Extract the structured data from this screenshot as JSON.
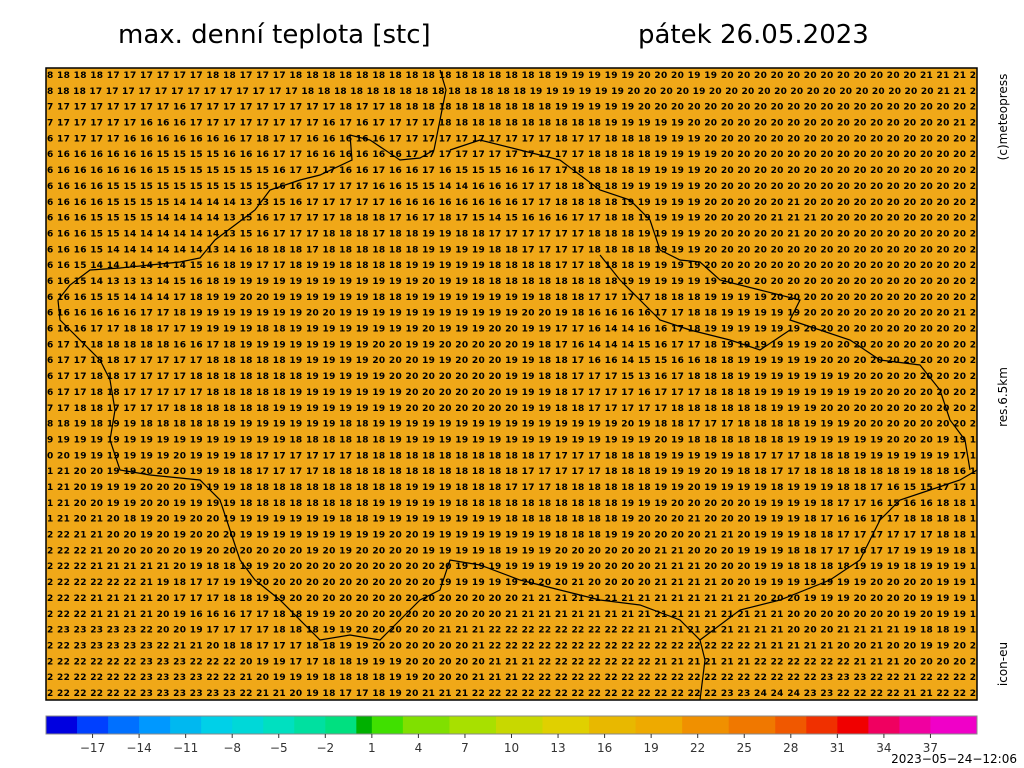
{
  "title": "max. denní teplota [stc]",
  "date": "pátek 26.05.2023",
  "credit": "(c)meteopress",
  "resolution": "res.6.5km",
  "model": "icon-eu",
  "timestamp": "2023−05−24−12:06",
  "map": {
    "background": "#f0a818",
    "rows": [
      "8 18 18 18 17 17 17 17 17 17 18 18 17 17 17 18 18 18 18 18 18 18 18 18 18 18 18 18 18 18 18 19 19 19 19 19 20 20 20 19 19 20 20 20 20 20 20 20 20 20 20 20 20 21 21 21 2",
      "8 18 18 17 17 17 17 17 17 17 17 17 17 17 17 17 18 18 18 18 18 18 18 18 18 18 18 18 18 18 19 19 19 19 19 19 20 20 20 20 19 20 20 20 20 20 20 20 20 20 20 20 20 20 20 21 21 2",
      "7 17 17 17 17 17 17 17 16 17 17 17 17 17 17 17 17 17 18 17 17 18 18 18 18 18 18 18 18 18 18 19 19 19 19 19 20 20 20 20 20 20 20 20 20 20 20 20 20 20 20 20 20 20 20 20 2",
      "7 17 17 17 17 17 16 16 16 17 17 17 17 17 17 17 17 16 17 16 17 17 17 17 18 18 18 18 18 18 18 18 18 18 19 19 19 19 19 20 20 20 20 20 20 20 20 20 20 20 20 20 20 20 20 21 2",
      "6 17 17 17 17 16 16 16 16 16 16 16 17 18 17 17 16 16 16 16 16 17 17 17 17 17 17 17 17 17 17 18 17 17 18 18 18 19 19 19 20 20 20 20 20 20 20 20 20 20 20 20 20 20 20 20 2",
      "6 16 16 16 16 16 16 15 15 15 15 16 16 16 17 17 16 16 16 16 16 16 17 17 17 17 17 17 17 17 17 17 17 18 18 18 18 19 19 19 19 20 20 20 20 20 20 20 20 20 20 20 20 20 20 20 2",
      "6 16 16 16 16 16 16 15 15 15 15 15 15 15 16 17 17 17 16 16 17 16 16 17 16 15 15 15 16 16 17 17 18 18 18 18 19 19 19 19 20 20 20 20 20 20 20 20 20 20 20 20 20 20 20 20 2",
      "6 16 16 16 15 15 15 15 15 15 15 15 15 15 16 16 17 17 17 17 16 16 15 15 14 14 16 16 16 17 17 18 18 18 18 19 19 19 19 19 20 20 20 20 20 20 20 20 20 20 20 20 20 20 20 20 2",
      "6 16 16 16 15 15 15 15 14 14 14 14 13 13 15 16 17 17 17 17 17 16 16 16 16 16 16 16 16 17 17 18 18 18 18 19 19 19 19 19 20 20 20 20 20 21 20 20 20 20 20 20 20 20 20 20 2",
      "6 16 16 15 15 15 15 14 14 14 14 13 15 16 17 17 17 17 18 18 18 17 16 17 18 17 15 14 15 16 16 16 17 17 18 18 19 19 19 19 20 20 20 20 21 21 21 20 20 20 20 20 20 20 20 20 2",
      "6 16 16 15 15 14 14 14 14 14 14 13 15 16 17 17 17 18 18 18 17 18 18 19 19 18 18 17 17 17 17 17 17 18 18 18 19 19 19 19 20 20 20 20 20 21 20 20 20 20 20 20 20 20 20 20 2",
      "6 16 16 15 14 14 14 14 14 14 13 14 16 18 18 18 17 18 18 18 18 18 18 19 19 19 19 18 18 17 17 17 17 18 18 18 18 19 19 19 20 20 20 20 20 20 20 20 20 20 20 20 20 20 20 20 2",
      "6 16 15 14 14 14 14 14 14 15 16 18 19 17 17 18 19 19 18 18 18 18 19 19 19 19 19 18 18 18 18 17 17 18 18 18 19 19 19 19 20 20 20 20 20 20 20 20 20 20 20 20 20 20 20 20 2",
      "6 16 15 14 13 13 13 14 15 16 18 19 19 19 19 19 19 19 19 19 19 19 19 20 19 19 18 18 18 18 18 18 18 18 18 19 19 19 19 19 19 20 20 20 20 20 20 20 20 20 20 20 20 20 20 20 2",
      "6 16 16 15 15 14 14 14 17 18 19 19 20 20 19 19 19 19 19 19 18 18 19 19 19 19 19 19 19 19 18 18 18 17 17 17 17 18 18 18 19 19 19 19 20 20 20 20 20 20 20 20 20 20 20 20 2",
      "6 16 16 16 16 16 17 17 18 19 19 19 19 19 19 19 20 20 19 19 19 19 19 19 19 19 19 19 19 20 20 19 18 16 16 16 16 17 17 18 18 19 19 19 19 19 20 20 20 20 20 20 20 20 20 21 2",
      "6 16 16 17 17 18 18 17 17 19 19 19 19 18 18 19 19 19 19 19 19 19 19 20 19 19 19 20 20 19 19 17 17 16 14 14 16 16 17 18 19 19 19 19 19 19 20 20 20 20 20 20 20 20 20 20 2",
      "6 17 17 18 18 18 18 18 16 16 17 18 19 19 19 19 19 19 19 19 20 20 19 19 20 20 20 20 20 19 18 17 16 14 14 14 15 16 17 17 18 19 19 19 19 19 19 20 20 20 20 20 20 20 20 20 2",
      "6 17 17 18 18 17 17 17 17 17 18 18 18 18 18 19 19 19 19 19 20 20 20 19 19 20 20 20 19 19 18 18 17 16 16 14 15 15 16 16 18 18 19 19 19 19 19 20 20 20 20 20 20 20 20 20 2",
      "6 17 17 18 18 17 17 17 17 18 18 18 18 18 18 18 19 19 19 19 19 20 20 20 20 20 20 20 19 19 18 18 17 17 17 15 13 16 17 18 18 18 19 19 19 19 19 19 19 20 20 20 20 20 20 20 2",
      "6 17 17 18 18 17 17 17 17 17 18 18 18 18 18 19 19 19 19 19 19 19 20 20 20 20 20 20 19 19 19 18 17 17 17 17 16 17 17 17 18 18 18 19 19 19 19 19 19 19 20 20 20 20 20 20 2",
      "7 17 18 18 17 17 17 17 18 18 18 18 18 18 19 19 19 19 19 19 19 19 20 20 20 20 20 20 20 19 19 18 18 17 17 17 17 17 18 18 18 18 18 18 19 19 19 20 20 20 20 20 20 20 20 20 2",
      "8 18 19 18 19 19 18 18 18 18 18 19 19 19 19 19 19 19 18 18 19 19 19 19 19 19 19 19 19 19 19 19 19 19 19 20 19 18 18 17 17 17 18 18 18 18 19 19 19 20 20 20 20 20 20 20 2",
      "9 19 19 19 19 19 19 19 19 19 19 19 19 19 19 18 18 18 18 18 18 19 19 19 19 19 19 19 19 19 19 19 19 19 19 19 19 20 19 18 18 18 18 18 18 19 19 19 19 19 19 20 20 20 19 19 1",
      "0 20 19 19 19 19 19 19 20 19 19 19 18 17 17 17 17 17 17 18 18 18 18 18 18 18 18 18 18 18 17 17 17 17 18 18 18 19 19 19 19 19 18 17 17 17 18 18 18 19 19 19 19 19 19 17 1",
      "1 21 20 20 19 19 20 20 20 19 19 18 18 17 17 17 17 18 18 18 18 18 18 18 18 18 18 18 18 17 17 17 17 17 18 18 18 19 19 19 20 19 18 18 17 17 18 18 18 18 18 18 19 18 18 16 1",
      "1 21 20 19 19 19 20 20 20 19 19 19 18 18 18 18 18 18 18 18 18 18 19 19 19 18 18 18 17 17 17 18 18 18 18 18 18 19 19 20 19 19 19 19 18 19 19 19 18 18 17 16 15 15 17 17 1",
      "1 21 20 20 19 19 20 20 19 19 19 19 18 18 18 18 18 18 18 18 19 19 19 19 19 18 18 18 18 18 18 18 18 18 18 19 19 19 20 20 20 20 20 19 19 19 19 18 17 17 16 15 16 16 18 18 1",
      "1 21 20 21 20 18 19 20 19 20 20 19 19 19 19 19 19 19 18 18 19 19 19 19 19 19 19 19 18 18 18 18 18 18 18 19 20 20 20 21 20 20 20 19 19 19 18 17 16 16 17 17 18 18 18 18 1",
      "2 22 21 21 20 20 19 20 19 20 20 20 19 19 19 19 19 19 19 19 19 20 20 19 19 19 19 19 19 19 19 18 18 18 19 19 20 20 20 20 21 21 20 19 19 19 18 18 17 17 17 17 17 17 18 18 1",
      "2 22 22 21 20 20 20 20 20 19 20 20 20 20 20 20 19 20 19 20 20 20 20 19 19 19 19 18 19 19 19 20 20 20 20 20 20 21 21 20 20 20 19 19 19 18 18 17 17 16 17 17 19 19 19 18 1",
      "2 22 22 21 21 21 21 21 20 19 18 18 19 19 20 20 20 20 20 20 20 20 20 20 20 19 19 19 19 19 19 19 19 20 20 20 20 21 21 21 20 20 20 19 19 18 18 18 18 19 19 19 18 19 19 19 1",
      "2 22 22 22 22 22 21 19 18 17 17 19 19 20 20 20 20 20 20 20 20 20 20 20 19 19 19 19 19 20 20 20 21 20 20 20 20 21 21 21 21 20 20 19 19 19 19 19 19 19 20 20 20 20 19 19 1",
      "2 22 22 21 21 21 21 20 17 17 17 18 18 19 19 20 20 20 20 20 20 20 20 20 20 20 20 20 20 21 21 21 21 21 21 21 21 21 21 21 21 21 21 20 20 20 19 19 19 20 20 20 20 19 19 19 1",
      "2 22 22 21 21 21 21 20 19 16 16 16 17 17 18 18 19 19 20 20 20 20 20 20 20 20 20 20 21 21 21 21 21 21 21 21 21 21 21 21 21 21 21 21 21 20 20 20 20 20 20 20 19 20 19 19 1",
      "2 23 23 23 23 23 22 20 20 19 17 17 17 17 18 18 18 19 19 20 20 20 20 20 21 21 21 22 22 22 22 22 22 22 22 22 21 21 21 21 21 21 21 21 21 20 20 20 21 21 21 21 19 18 18 19 1",
      "2 22 23 23 23 23 23 22 21 21 20 18 18 17 17 17 18 18 19 19 20 20 20 20 20 20 21 22 22 22 22 22 22 22 22 22 22 22 22 22 22 22 22 21 21 21 21 21 20 20 21 20 20 19 19 20 2",
      "2 22 22 22 22 22 23 23 23 22 22 22 20 19 19 17 17 18 18 19 19 19 20 20 20 20 20 21 21 21 22 22 22 22 22 22 22 21 21 21 21 21 21 22 22 22 22 22 22 21 21 21 20 20 20 20 2",
      "2 22 22 22 22 22 23 23 23 23 22 22 21 20 19 19 19 18 18 18 18 19 19 20 20 20 21 21 21 22 22 22 22 22 22 22 22 22 22 22 22 22 22 22 22 22 22 23 23 23 22 22 21 22 22 22 2",
      "2 22 22 22 22 22 23 23 23 23 23 23 22 21 21 20 19 18 17 17 18 19 20 21 21 21 22 22 22 22 22 22 22 22 22 22 22 22 22 22 22 23 23 24 24 24 23 23 22 22 22 22 21 21 22 22 2"
    ]
  },
  "colorbar": {
    "lim": [
      -20,
      40
    ],
    "edges": [
      -20,
      -18,
      -16,
      -14,
      -12,
      -10,
      -8,
      -6,
      -4,
      -2,
      0,
      1,
      3,
      6,
      9,
      12,
      15,
      18,
      21,
      24,
      27,
      29,
      31,
      33,
      35,
      37,
      40
    ],
    "colors": [
      "#0000e0",
      "#0040ff",
      "#0070ff",
      "#0098ff",
      "#00b8f0",
      "#00d0e8",
      "#00d8d8",
      "#00e0c0",
      "#00e0a0",
      "#00e080",
      "#00b000",
      "#40e000",
      "#80e000",
      "#a8e000",
      "#c8d800",
      "#e0d000",
      "#e8b800",
      "#eeaa00",
      "#f09000",
      "#f07800",
      "#f05800",
      "#f03000",
      "#f00000",
      "#f00060",
      "#f000a0",
      "#f000c8"
    ],
    "ticks": [
      {
        "value": -17,
        "label": "−17"
      },
      {
        "value": -14,
        "label": "−14"
      },
      {
        "value": -11,
        "label": "−11"
      },
      {
        "value": -8,
        "label": "−8"
      },
      {
        "value": -5,
        "label": "−5"
      },
      {
        "value": -2,
        "label": "−2"
      },
      1,
      4,
      7,
      10,
      13,
      16,
      19,
      22,
      25,
      28,
      31,
      34,
      37
    ]
  }
}
